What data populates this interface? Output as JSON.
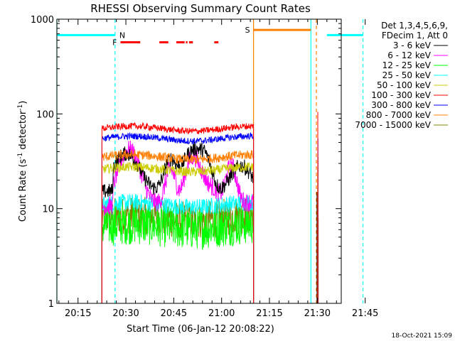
{
  "chart_data": {
    "type": "line",
    "title": "RHESSI Observing Summary Count Rates",
    "ylabel": "Count Rate (s⁻¹ detector⁻¹)",
    "ylabel_main": "Count Rate (s",
    "ylabel_exp1": "-1",
    "ylabel_mid": " detector",
    "ylabel_exp2": "-1",
    "ylabel_end": ")",
    "xlabel": "Start Time (06-Jan-12 20:08:22)",
    "y_scale": "log",
    "ylim": [
      1,
      1000
    ],
    "xlim_minutes": [
      8.37,
      97.5
    ],
    "x_ticks": [
      "20:15",
      "20:30",
      "20:45",
      "21:00",
      "21:15",
      "21:30",
      "21:45"
    ],
    "x_tick_minutes": [
      15,
      30,
      45,
      60,
      75,
      90,
      105
    ],
    "y_ticks": [
      "1",
      "10",
      "100",
      "1000"
    ],
    "y_tick_values": [
      1,
      10,
      100,
      1000
    ],
    "legend_header": [
      "Det 1,3,4,5,6,9,",
      "FDecim 1, Att 0"
    ],
    "legend_placement": "right",
    "timestamp": "18-Oct-2021 15:09",
    "series": [
      {
        "name": "3 - 6 keV",
        "color": "#000000",
        "level": 15,
        "data_window": [
          22.5,
          70
        ]
      },
      {
        "name": "6 - 12 keV",
        "color": "#ff00ff",
        "level": 11,
        "data_window": [
          22.5,
          70
        ]
      },
      {
        "name": "12 - 25 keV",
        "color": "#00ff00",
        "level": 6.5,
        "data_window": [
          22.5,
          70
        ]
      },
      {
        "name": "25 - 50 keV",
        "color": "#00ffff",
        "level": 11,
        "data_window": [
          22.5,
          70
        ]
      },
      {
        "name": "50 - 100 keV",
        "color": "#cccc00",
        "level": 26,
        "data_window": [
          22.5,
          70
        ]
      },
      {
        "name": "100 - 300 keV",
        "color": "#ff0000",
        "level": 70,
        "data_window": [
          22.5,
          70
        ]
      },
      {
        "name": "300 - 800 keV",
        "color": "#0000ff",
        "level": 55,
        "data_window": [
          22.5,
          70
        ]
      },
      {
        "name": "800 - 7000 keV",
        "color": "#ff8000",
        "level": 35,
        "data_window": [
          22.5,
          70
        ]
      },
      {
        "name": "7000 - 15000 keV",
        "color": "#808000",
        "level": 8,
        "data_window": [
          22.5,
          70
        ]
      }
    ],
    "flags": [
      {
        "label": "N",
        "color": "#00ffff",
        "level_value": 680,
        "segments": [
          [
            8.37,
            26.6
          ],
          [
            93.0,
            104.3
          ]
        ]
      },
      {
        "label": "F",
        "color": "#ff0000",
        "level_value": 570,
        "segments": [
          [
            28.3,
            34.5
          ],
          [
            40.5,
            43.3
          ],
          [
            45.8,
            48.4
          ],
          [
            48.8,
            49.3
          ],
          [
            49.8,
            51.0
          ],
          [
            57.7,
            59.0
          ]
        ]
      },
      {
        "label": "S",
        "color": "#ff8000",
        "level_value": 770,
        "segments": [
          [
            70.0,
            88.0
          ]
        ]
      }
    ],
    "vertical_lines": [
      {
        "x": 8.37,
        "color": "#00ffff",
        "style": "solid"
      },
      {
        "x": 26.6,
        "color": "#00ffff",
        "style": "dashed"
      },
      {
        "x": 70.0,
        "color": "#ff8000",
        "style": "solid"
      },
      {
        "x": 88.0,
        "color": "#00ffff",
        "style": "solid"
      },
      {
        "x": 89.7,
        "color": "#ff8000",
        "style": "dashed"
      },
      {
        "x": 104.3,
        "color": "#00ffff",
        "style": "dashed"
      }
    ]
  }
}
